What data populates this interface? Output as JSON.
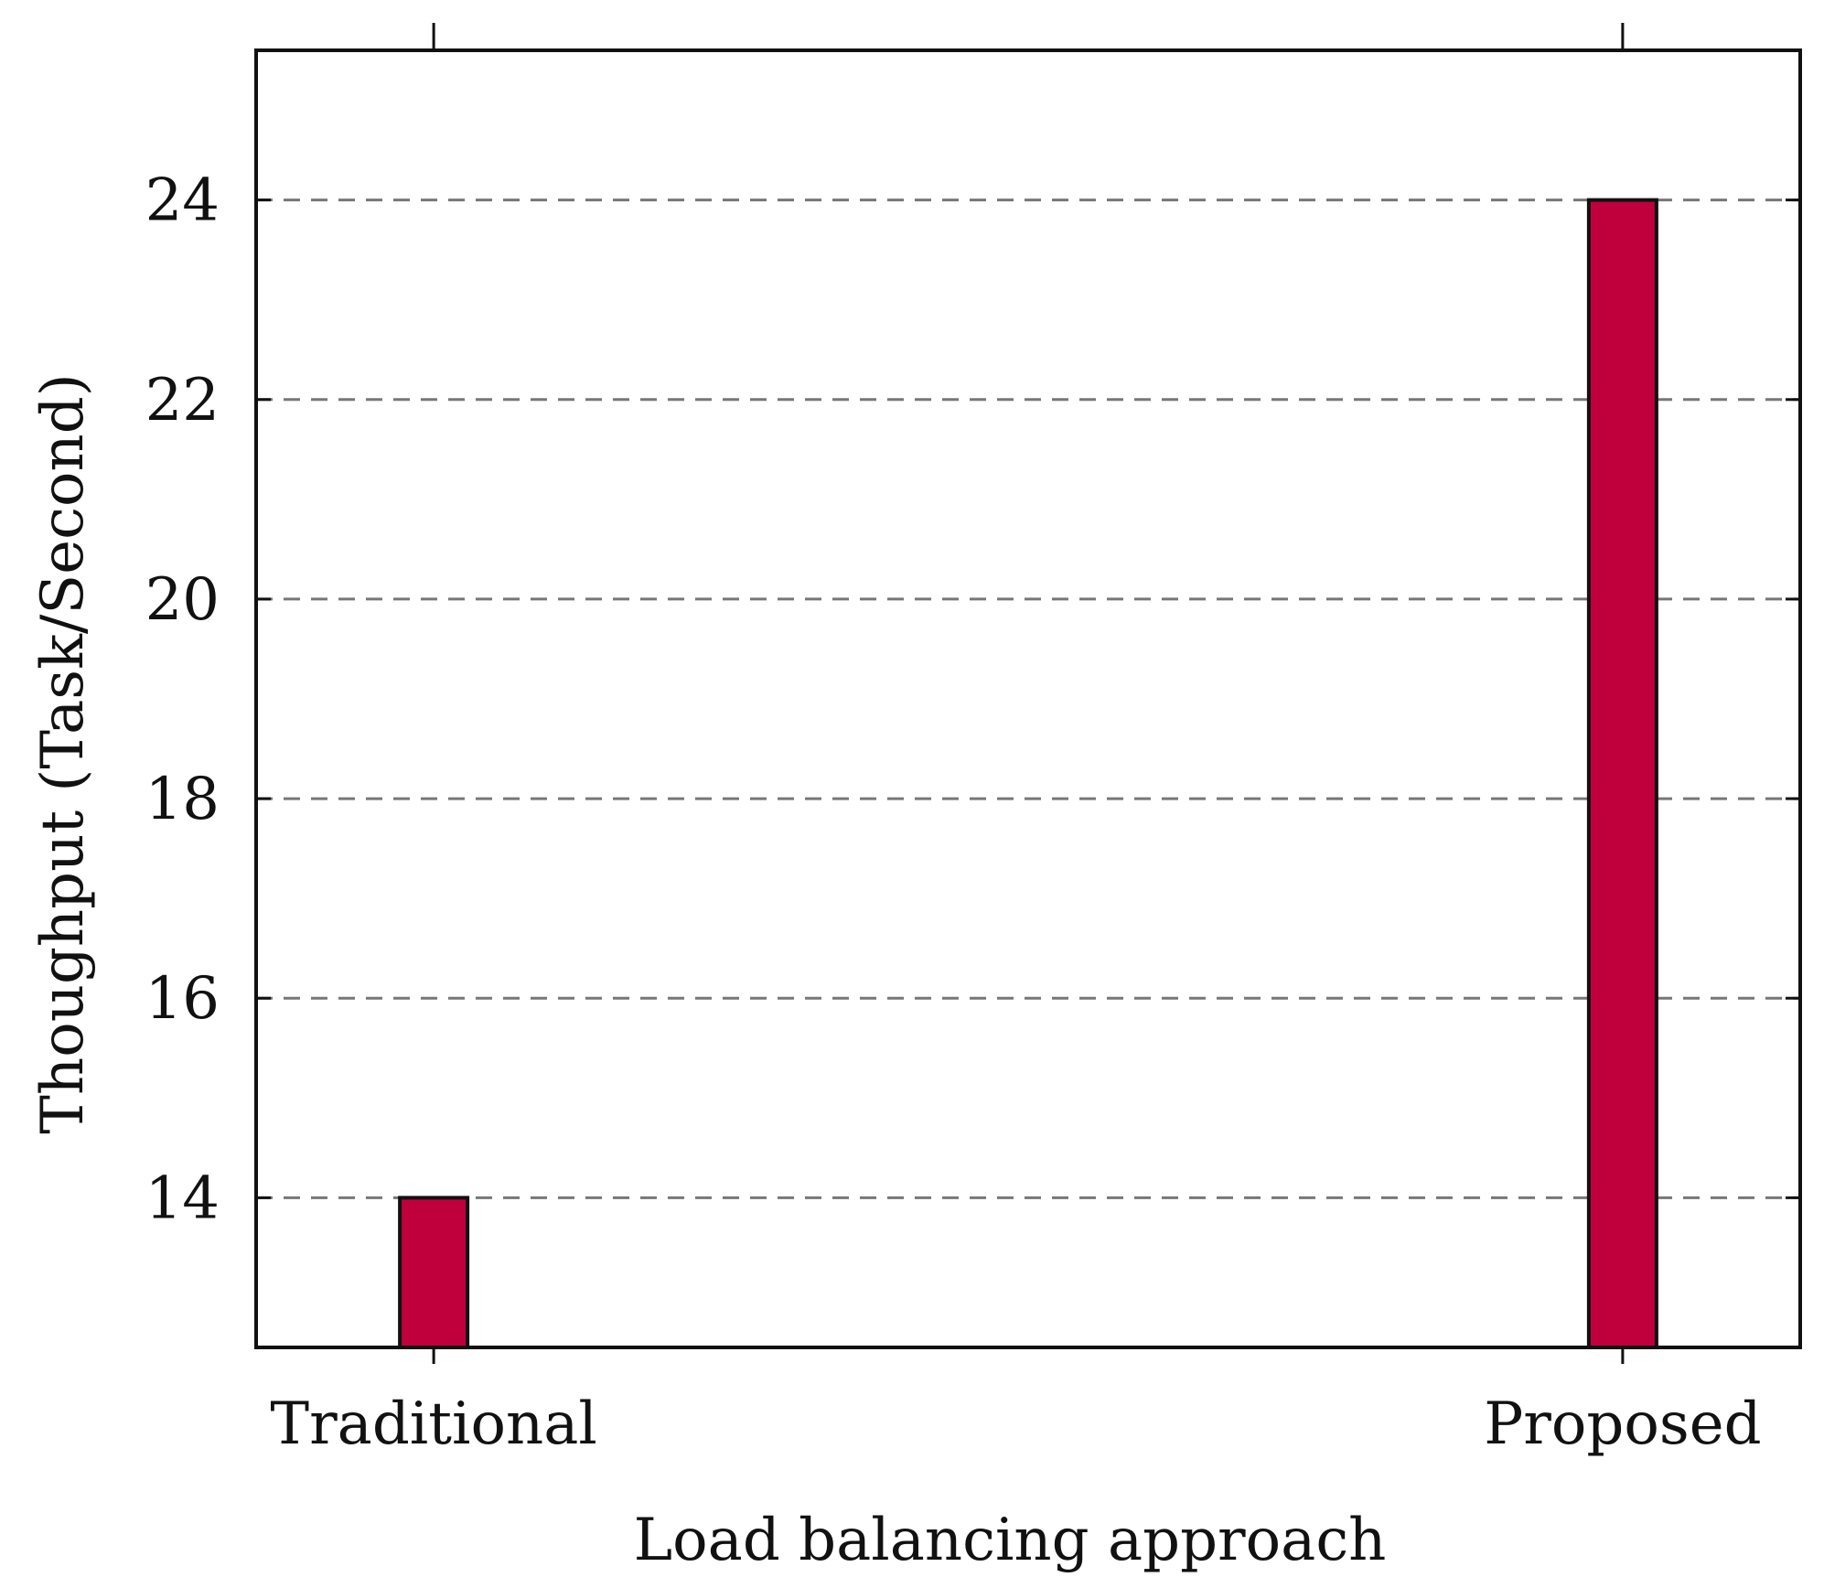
{
  "chart_data": {
    "type": "bar",
    "categories": [
      "Traditional",
      "Proposed"
    ],
    "values": [
      14,
      24
    ],
    "xlabel": "Load balancing approach",
    "ylabel": "Thoughput (Task/Second)",
    "ylim": [
      12.5,
      25.5
    ],
    "yticks": [
      14,
      16,
      18,
      20,
      22,
      24
    ],
    "grid": true,
    "grid_style": "dashed",
    "colors": {
      "bar_fill": "#c0003c",
      "bar_stroke": "#111111",
      "grid": "#777777",
      "axis": "#111111"
    }
  }
}
